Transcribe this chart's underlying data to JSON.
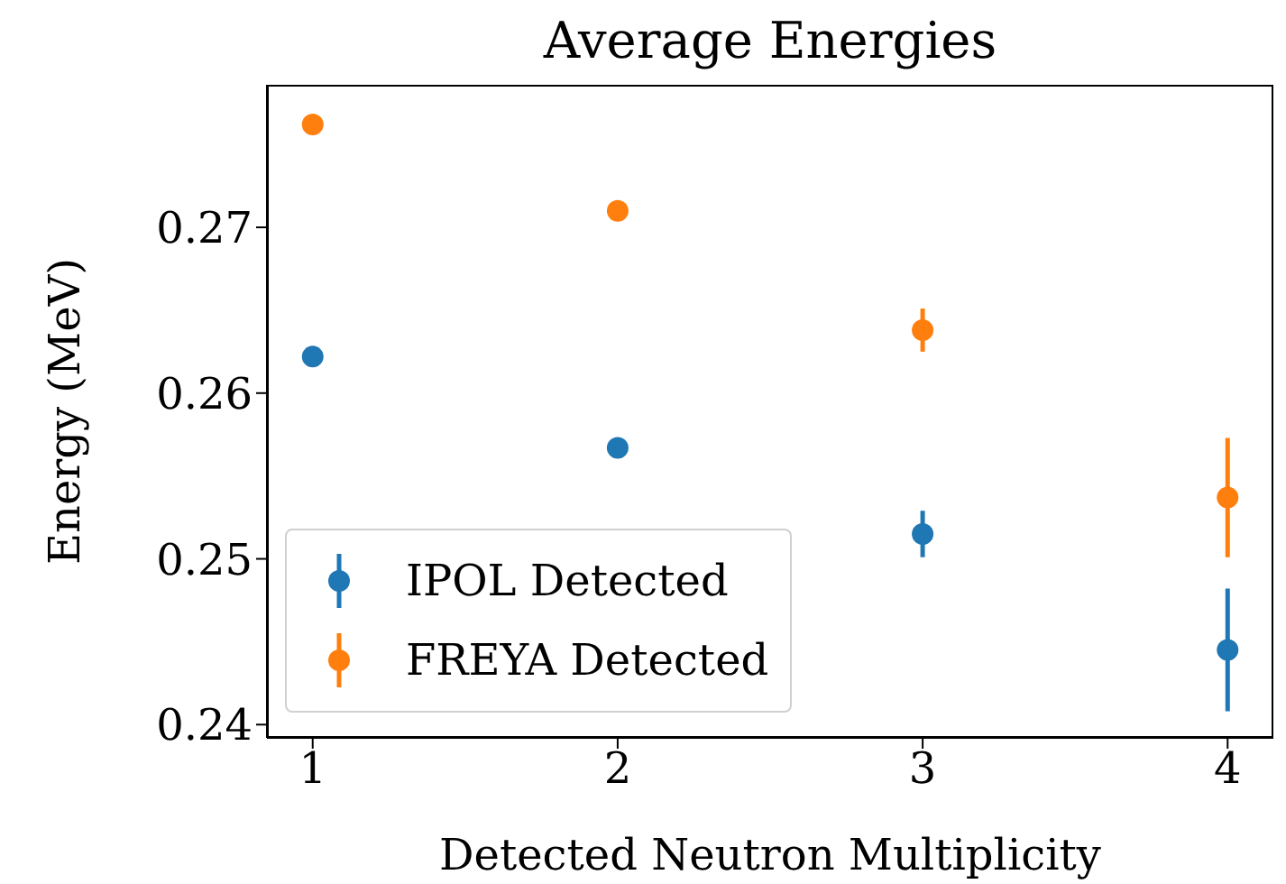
{
  "chart_data": {
    "type": "scatter",
    "title": "Average Energies",
    "xlabel": "Detected Neutron Multiplicity",
    "ylabel": "Energy (MeV)",
    "x": [
      1,
      2,
      3,
      4
    ],
    "series": [
      {
        "name": "IPOL Detected",
        "color": "#1f77b4",
        "values": [
          0.2622,
          0.2567,
          0.2515,
          0.2445
        ],
        "errors": [
          null,
          null,
          0.0014,
          0.0037
        ]
      },
      {
        "name": "FREYA Detected",
        "color": "#ff7f0e",
        "values": [
          0.2762,
          0.271,
          0.2638,
          0.2537
        ],
        "errors": [
          null,
          0.0004,
          0.0013,
          0.0036
        ]
      }
    ],
    "xlim": [
      0.85,
      4.15
    ],
    "xticks": [
      1,
      2,
      3,
      4
    ],
    "ylim": [
      0.2392,
      0.2786
    ],
    "yticks": [
      0.24,
      0.25,
      0.26,
      0.27
    ],
    "marker": "circle",
    "grid": false,
    "legend": "bottom left"
  }
}
